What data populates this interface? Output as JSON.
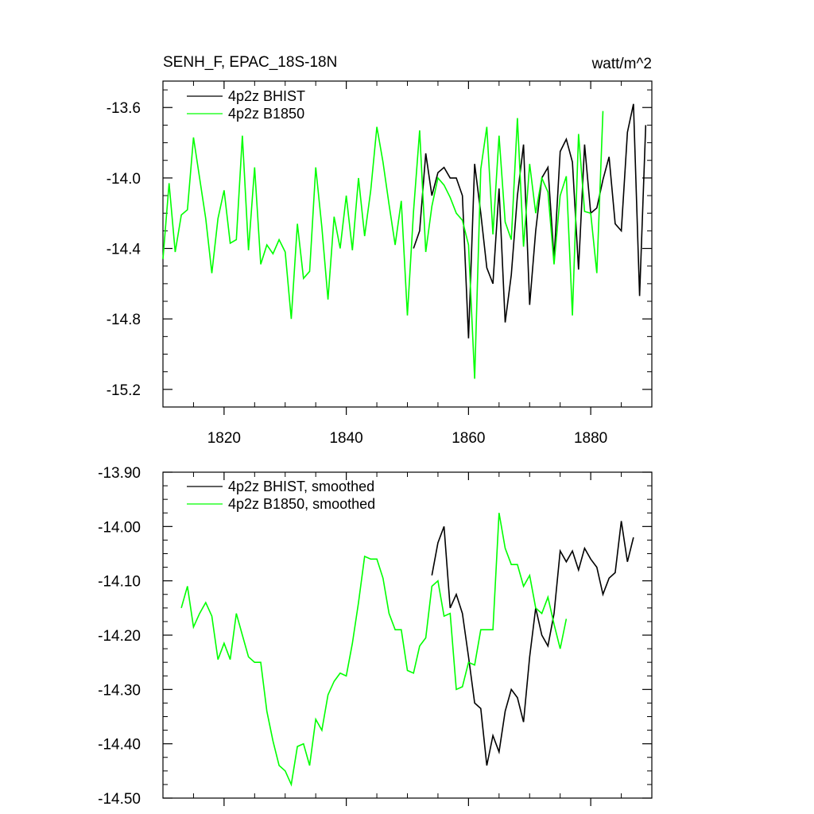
{
  "chart_data": [
    {
      "type": "line",
      "title": "SENH_F, EPAC_18S-18N",
      "units": "watt/m^2",
      "xlim": [
        1810,
        1890
      ],
      "ylim": [
        -15.3,
        -13.45
      ],
      "x_ticks": [
        1820,
        1840,
        1860,
        1880
      ],
      "x_tick_labels": [
        "1820",
        "1840",
        "1860",
        "1880"
      ],
      "y_ticks": [
        -13.6,
        -14.0,
        -14.4,
        -14.8,
        -15.2
      ],
      "y_tick_labels": [
        "-13.6",
        "-14.0",
        "-14.4",
        "-14.8",
        "-15.2"
      ],
      "legend_position": "top-left",
      "series": [
        {
          "name": "4p2z BHIST",
          "color": "#000000",
          "x_start": 1851,
          "values": [
            -14.4,
            -14.3,
            -13.86,
            -14.1,
            -13.97,
            -13.94,
            -14.0,
            -14.0,
            -14.1,
            -14.91,
            -13.92,
            -14.2,
            -14.51,
            -14.6,
            -14.06,
            -14.82,
            -14.55,
            -14.1,
            -13.81,
            -14.72,
            -14.3,
            -14.0,
            -13.94,
            -14.46,
            -13.85,
            -13.78,
            -13.91,
            -14.52,
            -13.81,
            -14.2,
            -14.17,
            -14.01,
            -13.88,
            -14.26,
            -14.3,
            -13.74,
            -13.58,
            -14.67,
            -13.7
          ]
        },
        {
          "name": "4p2z B1850",
          "color": "#00ff00",
          "x_start": 1810,
          "values": [
            -14.46,
            -14.03,
            -14.42,
            -14.21,
            -14.18,
            -13.77,
            -14.0,
            -14.23,
            -14.54,
            -14.23,
            -14.07,
            -14.37,
            -14.35,
            -13.76,
            -14.41,
            -13.94,
            -14.49,
            -14.38,
            -14.43,
            -14.35,
            -14.42,
            -14.8,
            -14.26,
            -14.57,
            -14.53,
            -13.94,
            -14.28,
            -14.69,
            -14.22,
            -14.4,
            -14.1,
            -14.41,
            -14.0,
            -14.33,
            -14.07,
            -13.71,
            -13.91,
            -14.15,
            -14.38,
            -14.13,
            -14.78,
            -14.19,
            -13.73,
            -14.42,
            -14.16,
            -14.0,
            -14.04,
            -14.11,
            -14.2,
            -14.24,
            -14.38,
            -15.14,
            -13.95,
            -13.71,
            -14.32,
            -13.76,
            -14.25,
            -14.35,
            -13.66,
            -14.39,
            -13.92,
            -14.2,
            -14.0,
            -14.08,
            -14.49,
            -14.1,
            -13.99,
            -14.78,
            -13.75,
            -14.19,
            -14.2,
            -14.54,
            -13.62
          ]
        }
      ]
    },
    {
      "type": "line",
      "xlim": [
        1810,
        1890
      ],
      "ylim": [
        -14.5,
        -13.9
      ],
      "x_ticks": [
        1820,
        1840,
        1860,
        1880
      ],
      "y_ticks": [
        -13.9,
        -14.0,
        -14.1,
        -14.2,
        -14.3,
        -14.4,
        -14.5
      ],
      "y_tick_labels": [
        "-13.90",
        "-14.00",
        "-14.10",
        "-14.20",
        "-14.30",
        "-14.40",
        "-14.50"
      ],
      "legend_position": "top-left",
      "series": [
        {
          "name": "4p2z BHIST, smoothed",
          "color": "#000000",
          "x_start": 1854,
          "values": [
            -14.09,
            -14.03,
            -14.0,
            -14.15,
            -14.125,
            -14.16,
            -14.24,
            -14.325,
            -14.335,
            -14.44,
            -14.385,
            -14.415,
            -14.34,
            -14.3,
            -14.315,
            -14.36,
            -14.24,
            -14.15,
            -14.2,
            -14.22,
            -14.16,
            -14.045,
            -14.065,
            -14.045,
            -14.08,
            -14.04,
            -14.06,
            -14.075,
            -14.125,
            -14.095,
            -14.085,
            -13.99,
            -14.065,
            -14.02
          ]
        },
        {
          "name": "4p2z B1850, smoothed",
          "color": "#00ff00",
          "x_start": 1813,
          "values": [
            -14.15,
            -14.11,
            -14.185,
            -14.16,
            -14.14,
            -14.165,
            -14.245,
            -14.215,
            -14.245,
            -14.16,
            -14.2,
            -14.24,
            -14.25,
            -14.25,
            -14.34,
            -14.395,
            -14.44,
            -14.45,
            -14.475,
            -14.405,
            -14.4,
            -14.44,
            -14.355,
            -14.375,
            -14.31,
            -14.285,
            -14.27,
            -14.275,
            -14.215,
            -14.14,
            -14.055,
            -14.06,
            -14.06,
            -14.095,
            -14.16,
            -14.19,
            -14.19,
            -14.265,
            -14.27,
            -14.22,
            -14.205,
            -14.11,
            -14.1,
            -14.165,
            -14.16,
            -14.3,
            -14.295,
            -14.25,
            -14.255,
            -14.19,
            -14.19,
            -14.19,
            -13.975,
            -14.04,
            -14.07,
            -14.07,
            -14.11,
            -14.09,
            -14.15,
            -14.16,
            -14.13,
            -14.18,
            -14.225,
            -14.17
          ]
        }
      ]
    }
  ]
}
